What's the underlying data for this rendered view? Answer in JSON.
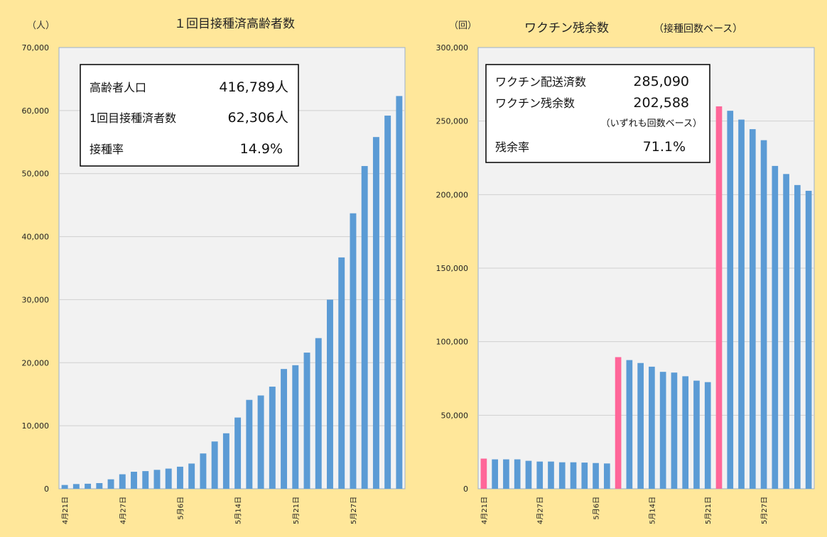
{
  "chart_data": [
    {
      "type": "bar",
      "title": "１回目接種済高齢者数",
      "unit_label": "（人）",
      "ylim": [
        0,
        70000
      ],
      "yticks": [
        "0",
        "10,000",
        "20,000",
        "30,000",
        "40,000",
        "50,000",
        "60,000",
        "70,000"
      ],
      "grid": true,
      "x_tick_labels": [
        "4月21日",
        "4月27日",
        "5月6日",
        "5月14日",
        "5月21日",
        "5月27日"
      ],
      "values": [
        600,
        750,
        800,
        900,
        1500,
        2300,
        2700,
        2800,
        3000,
        3200,
        3500,
        4000,
        5600,
        7500,
        8800,
        11300,
        14100,
        14800,
        16200,
        19000,
        19600,
        21600,
        23900,
        30000,
        36700,
        43700,
        51200,
        55800,
        59200,
        62306
      ],
      "bar_color": "#5B9BD5",
      "info_box": [
        {
          "label": "高齢者人口",
          "value": "416,789人"
        },
        {
          "label": "1回目接種済者数",
          "value": "62,306人"
        },
        {
          "label": "接種率",
          "value": "14.9%"
        }
      ]
    },
    {
      "type": "bar",
      "title": "ワクチン残余数",
      "subtitle": "（接種回数ベース）",
      "unit_label": "（回）",
      "ylim": [
        0,
        300000
      ],
      "yticks": [
        "0",
        "50,000",
        "100,000",
        "150,000",
        "200,000",
        "250,000",
        "300,000"
      ],
      "grid": true,
      "x_tick_labels": [
        "4月21日",
        "4月27日",
        "5月6日",
        "5月14日",
        "5月21日",
        "5月27日"
      ],
      "values": [
        20500,
        20000,
        20000,
        20000,
        19000,
        18500,
        18500,
        18000,
        18000,
        17800,
        17500,
        17200,
        89500,
        87500,
        85500,
        83000,
        79500,
        79000,
        76500,
        73500,
        72500,
        260000,
        257000,
        251000,
        244500,
        237000,
        219500,
        214000,
        206500,
        202588
      ],
      "highlight_indices": [
        0,
        12,
        21
      ],
      "bar_color": "#5B9BD5",
      "highlight_color": "#FF6699",
      "info_box": [
        {
          "label": "ワクチン配送済数",
          "value": "285,090"
        },
        {
          "label": "ワクチン残余数",
          "value": "202,588"
        },
        {
          "label": "残余率",
          "value": "71.1%"
        }
      ],
      "info_note": "（いずれも回数ベース）"
    }
  ]
}
